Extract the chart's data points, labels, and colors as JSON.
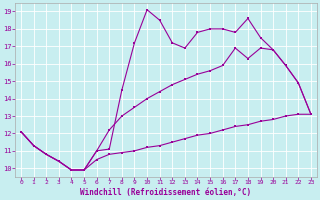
{
  "bg_color": "#c8eef0",
  "line_color": "#990099",
  "grid_color": "#ffffff",
  "xlabel": "Windchill (Refroidissement éolien,°C)",
  "xlabel_color": "#990099",
  "tick_color": "#990099",
  "xlim": [
    -0.5,
    23.5
  ],
  "ylim": [
    9.5,
    19.5
  ],
  "yticks": [
    10,
    11,
    12,
    13,
    14,
    15,
    16,
    17,
    18,
    19
  ],
  "xticks": [
    0,
    1,
    2,
    3,
    4,
    5,
    6,
    7,
    8,
    9,
    10,
    11,
    12,
    13,
    14,
    15,
    16,
    17,
    18,
    19,
    20,
    21,
    22,
    23
  ],
  "line1_x": [
    0,
    1,
    2,
    3,
    4,
    5,
    6,
    7,
    8,
    9,
    10,
    11,
    12,
    13,
    14,
    15,
    16,
    17,
    18,
    19,
    20,
    21,
    22,
    23
  ],
  "line1_y": [
    12.1,
    11.3,
    10.8,
    10.4,
    9.9,
    9.9,
    11.0,
    11.1,
    14.5,
    17.2,
    19.1,
    18.5,
    17.2,
    16.9,
    17.8,
    18.0,
    18.0,
    17.8,
    18.6,
    17.5,
    16.8,
    15.9,
    14.9,
    13.1
  ],
  "line2_x": [
    0,
    1,
    2,
    3,
    4,
    5,
    6,
    7,
    8,
    9,
    10,
    11,
    12,
    13,
    14,
    15,
    16,
    17,
    18,
    19,
    20,
    21,
    22,
    23
  ],
  "line2_y": [
    12.1,
    11.3,
    10.8,
    10.4,
    9.9,
    9.9,
    11.0,
    12.2,
    13.0,
    13.5,
    14.0,
    14.4,
    14.8,
    15.1,
    15.4,
    15.6,
    15.9,
    16.9,
    16.3,
    16.9,
    16.8,
    15.9,
    14.9,
    13.1
  ],
  "line3_x": [
    0,
    1,
    2,
    3,
    4,
    5,
    6,
    7,
    8,
    9,
    10,
    11,
    12,
    13,
    14,
    15,
    16,
    17,
    18,
    19,
    20,
    21,
    22,
    23
  ],
  "line3_y": [
    12.1,
    11.3,
    10.8,
    10.4,
    9.9,
    9.9,
    10.5,
    10.8,
    10.9,
    11.0,
    11.2,
    11.3,
    11.5,
    11.7,
    11.9,
    12.0,
    12.2,
    12.4,
    12.5,
    12.7,
    12.8,
    13.0,
    13.1,
    13.1
  ]
}
